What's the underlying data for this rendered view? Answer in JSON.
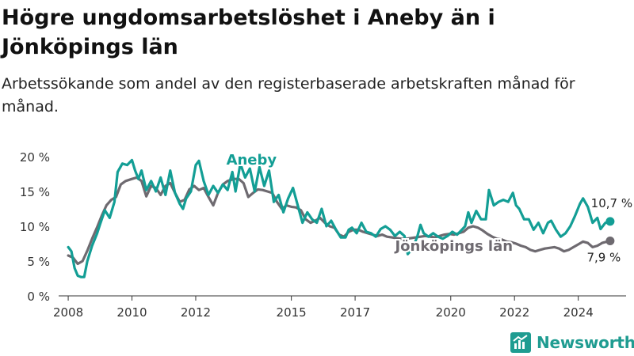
{
  "title": "Högre ungdomsarbetslöshet i Aneby än i Jönköpings län",
  "subtitle": "Arbetssökande som andel av den registerbaserade arbetskraften månad för månad.",
  "brand": "Newsworthy",
  "colors": {
    "aneby": "#139e95",
    "lan": "#6e6a70",
    "axis": "#333333",
    "grid": "#ffffff",
    "brand": "#1f9c91"
  },
  "chart_data": {
    "type": "line",
    "title": "Högre ungdomsarbetslöshet i Aneby än i Jönköpings län",
    "subtitle": "Arbetssökande som andel av den registerbaserade arbetskraften månad för månad.",
    "xlabel": "",
    "ylabel": "",
    "xlim": [
      2007.7,
      2025.5
    ],
    "ylim": [
      0,
      20
    ],
    "y_ticks": [
      0,
      5,
      10,
      15,
      20
    ],
    "y_tick_labels": [
      "0 %",
      "5 %",
      "10 %",
      "15 %",
      "20 %"
    ],
    "x_ticks": [
      2008,
      2010,
      2012,
      2015,
      2017,
      2020,
      2022,
      2024
    ],
    "x_tick_labels": [
      "2008",
      "2010",
      "2012",
      "2015",
      "2017",
      "2020",
      "2022",
      "2024"
    ],
    "grid": false,
    "series": [
      {
        "name": "Aneby",
        "color": "#139e95",
        "end_label": "10,7 %",
        "points": [
          [
            2008.0,
            7.0
          ],
          [
            2008.1,
            6.4
          ],
          [
            2008.2,
            4.0
          ],
          [
            2008.3,
            2.9
          ],
          [
            2008.4,
            2.7
          ],
          [
            2008.5,
            2.7
          ],
          [
            2008.6,
            5.0
          ],
          [
            2008.75,
            7.2
          ],
          [
            2008.9,
            8.9
          ],
          [
            2009.0,
            10.3
          ],
          [
            2009.15,
            12.3
          ],
          [
            2009.3,
            11.2
          ],
          [
            2009.45,
            13.5
          ],
          [
            2009.55,
            17.8
          ],
          [
            2009.7,
            19.0
          ],
          [
            2009.85,
            18.8
          ],
          [
            2010.0,
            19.5
          ],
          [
            2010.1,
            18.0
          ],
          [
            2010.2,
            16.8
          ],
          [
            2010.3,
            18.0
          ],
          [
            2010.45,
            15.2
          ],
          [
            2010.6,
            16.5
          ],
          [
            2010.75,
            15.0
          ],
          [
            2010.9,
            17.0
          ],
          [
            2011.05,
            14.5
          ],
          [
            2011.2,
            18.0
          ],
          [
            2011.35,
            14.8
          ],
          [
            2011.5,
            13.2
          ],
          [
            2011.6,
            12.5
          ],
          [
            2011.7,
            14.0
          ],
          [
            2011.85,
            15.0
          ],
          [
            2012.0,
            18.8
          ],
          [
            2012.1,
            19.4
          ],
          [
            2012.25,
            16.5
          ],
          [
            2012.4,
            14.5
          ],
          [
            2012.55,
            15.8
          ],
          [
            2012.7,
            14.8
          ],
          [
            2012.85,
            16.0
          ],
          [
            2013.0,
            15.2
          ],
          [
            2013.15,
            17.8
          ],
          [
            2013.25,
            15.0
          ],
          [
            2013.4,
            19.0
          ],
          [
            2013.55,
            17.0
          ],
          [
            2013.7,
            18.3
          ],
          [
            2013.85,
            15.0
          ],
          [
            2014.0,
            18.5
          ],
          [
            2014.15,
            15.8
          ],
          [
            2014.3,
            18.0
          ],
          [
            2014.45,
            13.5
          ],
          [
            2014.6,
            14.5
          ],
          [
            2014.75,
            12.0
          ],
          [
            2014.9,
            14.0
          ],
          [
            2015.05,
            15.5
          ],
          [
            2015.2,
            13.0
          ],
          [
            2015.35,
            10.5
          ],
          [
            2015.5,
            12.0
          ],
          [
            2015.65,
            11.0
          ],
          [
            2015.8,
            10.5
          ],
          [
            2015.95,
            12.5
          ],
          [
            2016.1,
            10.0
          ],
          [
            2016.25,
            10.8
          ],
          [
            2016.4,
            9.5
          ],
          [
            2016.55,
            8.4
          ],
          [
            2016.7,
            8.4
          ],
          [
            2016.8,
            9.5
          ],
          [
            2016.9,
            9.8
          ],
          [
            2017.05,
            9.0
          ],
          [
            2017.2,
            10.5
          ],
          [
            2017.35,
            9.2
          ],
          [
            2017.5,
            9.0
          ],
          [
            2017.65,
            8.5
          ],
          [
            2017.8,
            9.6
          ],
          [
            2017.95,
            10.0
          ],
          [
            2018.1,
            9.5
          ],
          [
            2018.25,
            8.6
          ],
          [
            2018.4,
            9.2
          ],
          [
            2018.55,
            8.6
          ],
          [
            2018.65,
            6.0
          ],
          [
            2018.8,
            6.8
          ],
          [
            2018.95,
            8.5
          ],
          [
            2019.05,
            10.2
          ],
          [
            2019.15,
            9.0
          ],
          [
            2019.3,
            8.5
          ],
          [
            2019.45,
            9.0
          ],
          [
            2019.6,
            8.5
          ],
          [
            2019.75,
            8.2
          ],
          [
            2019.9,
            8.6
          ],
          [
            2020.05,
            9.2
          ],
          [
            2020.2,
            8.8
          ],
          [
            2020.35,
            9.5
          ],
          [
            2020.45,
            10.0
          ],
          [
            2020.55,
            12.0
          ],
          [
            2020.65,
            10.5
          ],
          [
            2020.8,
            12.2
          ],
          [
            2020.95,
            11.0
          ],
          [
            2021.1,
            11.0
          ],
          [
            2021.2,
            15.2
          ],
          [
            2021.35,
            13.0
          ],
          [
            2021.5,
            13.5
          ],
          [
            2021.65,
            13.8
          ],
          [
            2021.8,
            13.5
          ],
          [
            2021.95,
            14.8
          ],
          [
            2022.05,
            13.0
          ],
          [
            2022.15,
            12.5
          ],
          [
            2022.3,
            11.0
          ],
          [
            2022.45,
            11.0
          ],
          [
            2022.6,
            9.5
          ],
          [
            2022.75,
            10.5
          ],
          [
            2022.9,
            9.0
          ],
          [
            2023.05,
            10.5
          ],
          [
            2023.15,
            10.8
          ],
          [
            2023.3,
            9.5
          ],
          [
            2023.45,
            8.5
          ],
          [
            2023.6,
            9.0
          ],
          [
            2023.75,
            10.0
          ],
          [
            2023.9,
            11.5
          ],
          [
            2024.05,
            13.2
          ],
          [
            2024.15,
            14.0
          ],
          [
            2024.3,
            12.8
          ],
          [
            2024.45,
            10.5
          ],
          [
            2024.6,
            11.2
          ],
          [
            2024.7,
            9.6
          ],
          [
            2024.85,
            10.5
          ],
          [
            2025.0,
            10.7
          ]
        ]
      },
      {
        "name": "Jönköpings län",
        "color": "#6e6a70",
        "end_label": "7,9 %",
        "points": [
          [
            2008.0,
            5.8
          ],
          [
            2008.15,
            5.5
          ],
          [
            2008.3,
            4.6
          ],
          [
            2008.45,
            5.0
          ],
          [
            2008.6,
            6.5
          ],
          [
            2008.75,
            8.2
          ],
          [
            2008.9,
            9.8
          ],
          [
            2009.05,
            11.5
          ],
          [
            2009.2,
            13.0
          ],
          [
            2009.35,
            13.8
          ],
          [
            2009.5,
            14.2
          ],
          [
            2009.65,
            16.0
          ],
          [
            2009.8,
            16.5
          ],
          [
            2010.0,
            16.8
          ],
          [
            2010.15,
            17.0
          ],
          [
            2010.3,
            16.5
          ],
          [
            2010.45,
            14.3
          ],
          [
            2010.6,
            15.8
          ],
          [
            2010.75,
            15.5
          ],
          [
            2010.9,
            14.5
          ],
          [
            2011.05,
            15.8
          ],
          [
            2011.2,
            16.2
          ],
          [
            2011.35,
            14.8
          ],
          [
            2011.5,
            13.5
          ],
          [
            2011.65,
            13.8
          ],
          [
            2011.8,
            15.3
          ],
          [
            2011.95,
            15.8
          ],
          [
            2012.1,
            15.2
          ],
          [
            2012.25,
            15.5
          ],
          [
            2012.4,
            14.2
          ],
          [
            2012.55,
            13.0
          ],
          [
            2012.7,
            14.8
          ],
          [
            2012.85,
            16.0
          ],
          [
            2013.0,
            16.5
          ],
          [
            2013.2,
            16.8
          ],
          [
            2013.35,
            16.8
          ],
          [
            2013.5,
            16.2
          ],
          [
            2013.65,
            14.2
          ],
          [
            2013.8,
            14.8
          ],
          [
            2013.95,
            15.3
          ],
          [
            2014.1,
            15.2
          ],
          [
            2014.25,
            15.0
          ],
          [
            2014.4,
            14.8
          ],
          [
            2014.55,
            13.5
          ],
          [
            2014.7,
            12.5
          ],
          [
            2014.85,
            13.0
          ],
          [
            2015.0,
            12.8
          ],
          [
            2015.15,
            12.7
          ],
          [
            2015.3,
            12.3
          ],
          [
            2015.45,
            11.0
          ],
          [
            2015.6,
            10.5
          ],
          [
            2015.75,
            10.8
          ],
          [
            2015.9,
            11.2
          ],
          [
            2016.05,
            10.5
          ],
          [
            2016.2,
            10.0
          ],
          [
            2016.35,
            9.8
          ],
          [
            2016.5,
            8.8
          ],
          [
            2016.65,
            8.5
          ],
          [
            2016.8,
            9.2
          ],
          [
            2016.95,
            9.5
          ],
          [
            2017.1,
            9.5
          ],
          [
            2017.25,
            9.2
          ],
          [
            2017.4,
            9.0
          ],
          [
            2017.55,
            8.8
          ],
          [
            2017.7,
            8.6
          ],
          [
            2017.85,
            8.8
          ],
          [
            2018.0,
            8.5
          ],
          [
            2018.15,
            8.4
          ],
          [
            2018.3,
            8.3
          ],
          [
            2018.45,
            8.2
          ],
          [
            2018.6,
            8.2
          ],
          [
            2018.75,
            8.3
          ],
          [
            2018.9,
            8.4
          ],
          [
            2019.05,
            8.5
          ],
          [
            2019.2,
            8.6
          ],
          [
            2019.35,
            8.5
          ],
          [
            2019.5,
            8.4
          ],
          [
            2019.65,
            8.6
          ],
          [
            2019.8,
            8.8
          ],
          [
            2019.95,
            8.9
          ],
          [
            2020.1,
            8.8
          ],
          [
            2020.25,
            9.0
          ],
          [
            2020.4,
            9.2
          ],
          [
            2020.55,
            9.8
          ],
          [
            2020.7,
            10.0
          ],
          [
            2020.85,
            9.8
          ],
          [
            2021.0,
            9.4
          ],
          [
            2021.15,
            8.9
          ],
          [
            2021.3,
            8.5
          ],
          [
            2021.45,
            8.2
          ],
          [
            2021.6,
            8.1
          ],
          [
            2021.75,
            7.8
          ],
          [
            2021.9,
            7.7
          ],
          [
            2022.05,
            7.5
          ],
          [
            2022.2,
            7.2
          ],
          [
            2022.35,
            7.0
          ],
          [
            2022.5,
            6.6
          ],
          [
            2022.65,
            6.4
          ],
          [
            2022.8,
            6.6
          ],
          [
            2022.95,
            6.8
          ],
          [
            2023.1,
            6.9
          ],
          [
            2023.25,
            7.0
          ],
          [
            2023.4,
            6.8
          ],
          [
            2023.55,
            6.4
          ],
          [
            2023.7,
            6.6
          ],
          [
            2023.85,
            7.0
          ],
          [
            2024.0,
            7.4
          ],
          [
            2024.15,
            7.8
          ],
          [
            2024.3,
            7.6
          ],
          [
            2024.45,
            7.0
          ],
          [
            2024.6,
            7.2
          ],
          [
            2024.75,
            7.6
          ],
          [
            2024.9,
            7.8
          ],
          [
            2025.0,
            7.9
          ]
        ]
      }
    ]
  }
}
